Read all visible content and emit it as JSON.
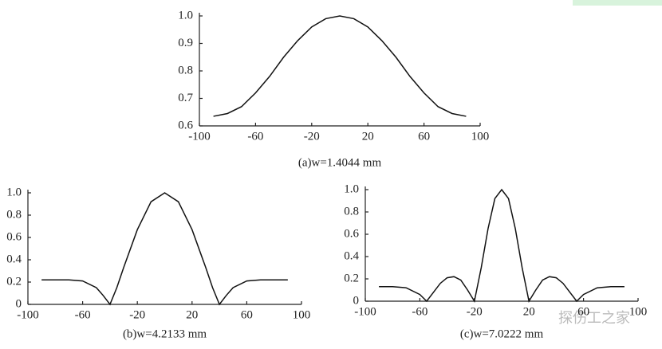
{
  "chart_data": [
    {
      "type": "line",
      "title": "(a)w=1.4044 mm",
      "x": [
        -90,
        -80,
        -70,
        -60,
        -50,
        -40,
        -30,
        -20,
        -10,
        0,
        10,
        20,
        30,
        40,
        50,
        60,
        70,
        80,
        90
      ],
      "series": [
        {
          "color": "#111111",
          "values": [
            0.635,
            0.645,
            0.67,
            0.72,
            0.78,
            0.85,
            0.91,
            0.96,
            0.99,
            1.0,
            0.99,
            0.96,
            0.91,
            0.85,
            0.78,
            0.72,
            0.67,
            0.645,
            0.635
          ]
        }
      ],
      "xlim": [
        -100,
        100
      ],
      "xticks": [
        -100,
        -60,
        -20,
        20,
        60,
        100
      ],
      "ylim": [
        0.6,
        1.0
      ],
      "yticks": [
        0.6,
        0.7,
        0.8,
        0.9,
        {
          "value": 1,
          "label": "1.0"
        }
      ]
    },
    {
      "type": "line",
      "title": "(b)w=4.2133 mm",
      "x": [
        -90,
        -80,
        -70,
        -60,
        -50,
        -45,
        -40,
        -35,
        -30,
        -20,
        -10,
        0,
        10,
        20,
        30,
        35,
        40,
        45,
        50,
        60,
        70,
        80,
        90
      ],
      "series": [
        {
          "color": "#111111",
          "values": [
            0.22,
            0.22,
            0.22,
            0.21,
            0.15,
            0.08,
            0,
            0.15,
            0.33,
            0.67,
            0.92,
            1.0,
            0.92,
            0.67,
            0.33,
            0.15,
            0,
            0.08,
            0.15,
            0.21,
            0.22,
            0.22,
            0.22
          ]
        }
      ],
      "xlim": [
        -100,
        100
      ],
      "xticks": [
        -100,
        -60,
        -20,
        20,
        60,
        100
      ],
      "ylim": [
        0,
        1.0
      ],
      "yticks": [
        0,
        0.2,
        0.4,
        0.6,
        0.8,
        {
          "value": 1,
          "label": "1.0"
        }
      ]
    },
    {
      "type": "line",
      "title": "(c)w=7.0222 mm",
      "x": [
        -90,
        -80,
        -70,
        -60,
        -55,
        -50,
        -45,
        -40,
        -35,
        -30,
        -25,
        -20,
        -15,
        -10,
        -5,
        0,
        5,
        10,
        15,
        20,
        25,
        30,
        35,
        40,
        45,
        50,
        55,
        60,
        70,
        80,
        90
      ],
      "series": [
        {
          "color": "#111111",
          "values": [
            0.13,
            0.13,
            0.12,
            0.06,
            0,
            0.08,
            0.16,
            0.21,
            0.22,
            0.19,
            0.1,
            0,
            0.3,
            0.65,
            0.92,
            1.0,
            0.92,
            0.65,
            0.3,
            0,
            0.1,
            0.19,
            0.22,
            0.21,
            0.16,
            0.08,
            0,
            0.06,
            0.12,
            0.13,
            0.13
          ]
        }
      ],
      "xlim": [
        -100,
        100
      ],
      "xticks": [
        -100,
        -60,
        -20,
        20,
        60,
        100
      ],
      "ylim": [
        0,
        1.0
      ],
      "yticks": [
        0,
        0.2,
        0.4,
        0.6,
        0.8,
        {
          "value": 1,
          "label": "1.0"
        }
      ]
    }
  ],
  "watermark": "探伤工之家"
}
